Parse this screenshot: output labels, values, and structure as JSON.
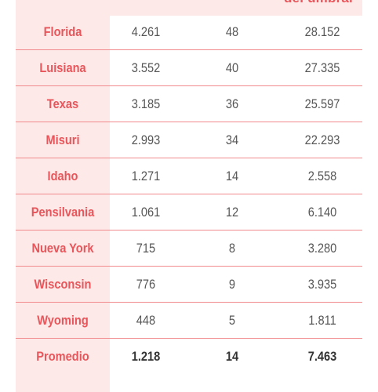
{
  "header": {
    "cut_label": "del umbral"
  },
  "rows": [
    {
      "state": "Florida",
      "c2": "4.261",
      "c3": "48",
      "c4": "28.152"
    },
    {
      "state": "Luisiana",
      "c2": "3.552",
      "c3": "40",
      "c4": "27.335"
    },
    {
      "state": "Texas",
      "c2": "3.185",
      "c3": "36",
      "c4": "25.597"
    },
    {
      "state": "Misuri",
      "c2": "2.993",
      "c3": "34",
      "c4": "22.293"
    },
    {
      "state": "Idaho",
      "c2": "1.271",
      "c3": "14",
      "c4": "2.558"
    },
    {
      "state": "Pensilvania",
      "c2": "1.061",
      "c3": "12",
      "c4": "6.140"
    },
    {
      "state": "Nueva York",
      "c2": "715",
      "c3": "8",
      "c4": "3.280"
    },
    {
      "state": "Wisconsin",
      "c2": "776",
      "c3": "9",
      "c4": "3.935"
    },
    {
      "state": "Wyoming",
      "c2": "448",
      "c3": "5",
      "c4": "1.811"
    }
  ],
  "average": {
    "state": "Promedio",
    "c2": "1.218",
    "c3": "14",
    "c4": "7.463"
  },
  "colors": {
    "accent": "#e8555a",
    "band": "#fdeae8",
    "rule": "#f08a8c",
    "text": "#555555"
  }
}
